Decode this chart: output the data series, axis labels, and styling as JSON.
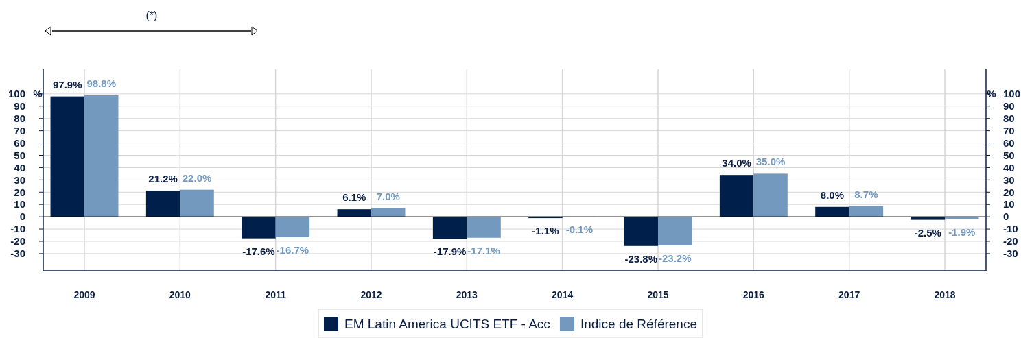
{
  "chart_data": {
    "type": "bar",
    "annotations": [
      "(*)"
    ],
    "ylabel": "%",
    "y2label": "%",
    "categories": [
      "2009",
      "2010",
      "2011",
      "2012",
      "2013",
      "2014",
      "2015",
      "2016",
      "2017",
      "2018"
    ],
    "series": [
      {
        "name": "EM Latin America UCITS ETF - Acc",
        "color": "#001f4b",
        "values": [
          97.9,
          21.2,
          -17.6,
          6.1,
          -17.9,
          -1.1,
          -23.8,
          34.0,
          8.0,
          -2.5
        ],
        "value_labels": [
          "97.9%",
          "21.2%",
          "-17.6%",
          "6.1%",
          "-17.9%",
          "-1.1%",
          "-23.8%",
          "34.0%",
          "8.0%",
          "-2.5%"
        ]
      },
      {
        "name": "Indice de Référence",
        "color": "#7399bf",
        "values": [
          98.8,
          22.0,
          -16.7,
          7.0,
          -17.1,
          -0.1,
          -23.2,
          35.0,
          8.7,
          -1.9
        ],
        "value_labels": [
          "98.8%",
          "22.0%",
          "-16.7%",
          "7.0%",
          "-17.1%",
          "-0.1%",
          "-23.2%",
          "35.0%",
          "8.7%",
          "-1.9%"
        ]
      }
    ],
    "ylim": [
      -44,
      120
    ],
    "yticks": [
      -30,
      -20,
      -10,
      0,
      10,
      20,
      30,
      40,
      50,
      60,
      70,
      80,
      90,
      100
    ],
    "y2lim": [
      -44,
      120
    ],
    "y2ticks": [
      -30,
      -20,
      -10,
      0,
      10,
      20,
      30,
      40,
      50,
      60,
      70,
      80,
      90,
      100
    ],
    "grid": true,
    "legend": "bottom"
  }
}
